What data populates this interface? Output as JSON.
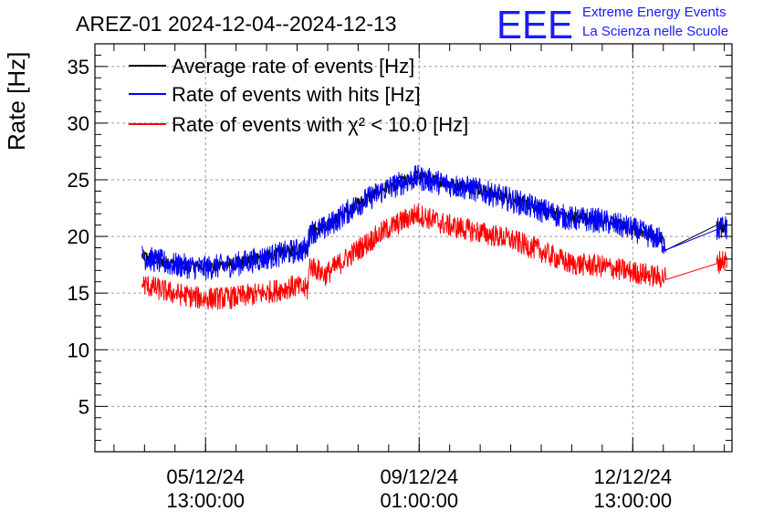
{
  "chart_data": {
    "type": "line",
    "title": "AREZ-01 2024-12-04--2024-12-13",
    "ylabel": "Rate [Hz]",
    "xlabel": "",
    "ylim": [
      1,
      37
    ],
    "xlim": [
      "2024-12-03 17:30",
      "2024-12-14 04:00"
    ],
    "grid": true,
    "legend_position": "top-left",
    "y_ticks": [
      5,
      10,
      15,
      20,
      25,
      30,
      35
    ],
    "x_ticks": [
      {
        "x": "2024-12-05 13:00:00",
        "date": "05/12/24",
        "time": "13:00:00"
      },
      {
        "x": "2024-12-09 01:00:00",
        "date": "09/12/24",
        "time": "01:00:00"
      },
      {
        "x": "2024-12-12 13:00:00",
        "date": "12/12/24",
        "time": "13:00:00"
      }
    ],
    "series": [
      {
        "name": "Average rate of events [Hz]",
        "color": "#000000",
        "x": [
          "2024-12-04 12:00",
          "2024-12-05 00:00",
          "2024-12-05 12:00",
          "2024-12-06 00:00",
          "2024-12-06 12:00",
          "2024-12-07 00:00",
          "2024-12-07 05:00",
          "2024-12-07 06:00",
          "2024-12-07 12:00",
          "2024-12-08 00:00",
          "2024-12-08 12:00",
          "2024-12-09 00:00",
          "2024-12-09 12:00",
          "2024-12-10 00:00",
          "2024-12-10 12:00",
          "2024-12-11 00:00",
          "2024-12-11 12:00",
          "2024-12-12 00:00",
          "2024-12-12 12:00",
          "2024-12-13 00:00",
          "2024-12-13 02:00",
          "2024-12-13 22:00",
          "2024-12-14 00:00",
          "2024-12-14 02:00"
        ],
        "values": [
          18.3,
          17.6,
          17.3,
          17.6,
          18.2,
          18.8,
          19.0,
          20.5,
          20.8,
          22.8,
          24.3,
          25.3,
          24.7,
          24.2,
          23.4,
          22.5,
          21.7,
          21.5,
          20.8,
          19.8,
          19.3,
          21.0,
          20.9,
          20.9
        ]
      },
      {
        "name": "Rate of events with hits [Hz]",
        "color": "#0000ff",
        "x": [
          "2024-12-04 12:00",
          "2024-12-05 00:00",
          "2024-12-05 12:00",
          "2024-12-06 00:00",
          "2024-12-06 12:00",
          "2024-12-07 00:00",
          "2024-12-07 05:00",
          "2024-12-07 06:00",
          "2024-12-07 12:00",
          "2024-12-08 00:00",
          "2024-12-08 12:00",
          "2024-12-09 00:00",
          "2024-12-09 12:00",
          "2024-12-10 00:00",
          "2024-12-10 12:00",
          "2024-12-11 00:00",
          "2024-12-11 12:00",
          "2024-12-12 00:00",
          "2024-12-12 12:00",
          "2024-12-13 00:00",
          "2024-12-13 02:00",
          "2024-12-13 22:00",
          "2024-12-14 00:00",
          "2024-12-14 02:00"
        ],
        "values": [
          18.2,
          17.5,
          17.2,
          17.5,
          18.1,
          18.7,
          18.9,
          20.4,
          20.7,
          22.7,
          24.2,
          25.2,
          24.6,
          24.1,
          23.3,
          22.4,
          21.6,
          21.4,
          20.7,
          19.7,
          19.2,
          20.6,
          20.8,
          20.8
        ]
      },
      {
        "name": "Rate of events with χ² < 10.0 [Hz]",
        "color": "#ff0000",
        "x": [
          "2024-12-04 12:00",
          "2024-12-05 00:00",
          "2024-12-05 12:00",
          "2024-12-06 00:00",
          "2024-12-06 12:00",
          "2024-12-07 00:00",
          "2024-12-07 05:00",
          "2024-12-07 06:00",
          "2024-12-07 12:00",
          "2024-12-08 00:00",
          "2024-12-08 12:00",
          "2024-12-09 00:00",
          "2024-12-09 12:00",
          "2024-12-10 00:00",
          "2024-12-10 12:00",
          "2024-12-11 00:00",
          "2024-12-11 12:00",
          "2024-12-12 00:00",
          "2024-12-12 12:00",
          "2024-12-13 00:00",
          "2024-12-13 02:00",
          "2024-12-13 22:00",
          "2024-12-14 00:00",
          "2024-12-14 02:00"
        ],
        "values": [
          15.8,
          15.0,
          14.5,
          14.6,
          15.0,
          15.6,
          15.3,
          17.5,
          16.6,
          18.7,
          20.6,
          22.0,
          21.0,
          20.4,
          19.8,
          18.8,
          17.6,
          17.4,
          16.9,
          16.4,
          16.4,
          17.6,
          17.9,
          17.9
        ]
      }
    ]
  },
  "logo": {
    "mark": "EEE",
    "line1": "Extreme Energy Events",
    "line2": "La Scienza nelle Scuole",
    "color": "#1a1aff"
  }
}
